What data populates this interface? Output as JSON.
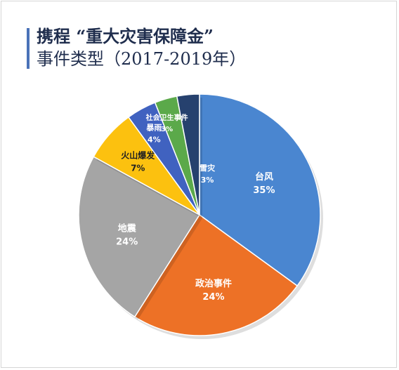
{
  "chart_data": {
    "type": "pie",
    "title_line1": "携程 “重大灾害保障金”",
    "title_line2": "事件类型（2017-2019年）",
    "slices": [
      {
        "label": "台风",
        "value": 35,
        "value_label": "35%",
        "color": "#4a86d0",
        "text_color": "#ffffff"
      },
      {
        "label": "政治事件",
        "value": 24,
        "value_label": "24%",
        "color": "#ed7126",
        "text_color": "#ffffff"
      },
      {
        "label": "地震",
        "value": 24,
        "value_label": "24%",
        "color": "#a5a5a5",
        "text_color": "#ffffff"
      },
      {
        "label": "火山爆发",
        "value": 7,
        "value_label": "7%",
        "color": "#fcc10f",
        "text_color": "#222222"
      },
      {
        "label": "暴雨",
        "value": 4,
        "value_label": "4%",
        "color": "#4062c0",
        "text_color": "#ffffff"
      },
      {
        "label": "社会卫生事件",
        "value": 3,
        "value_label": "3%",
        "color": "#5ba94a",
        "text_color": "#ffffff"
      },
      {
        "label": "雪灾",
        "value": 3,
        "value_label": "3%",
        "color": "#26416e",
        "text_color": "#ffffff"
      }
    ]
  }
}
